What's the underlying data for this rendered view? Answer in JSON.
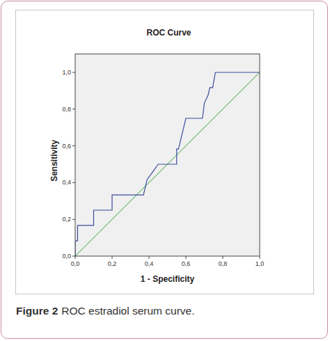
{
  "chart_data": {
    "type": "line",
    "title": "ROC Curve",
    "x_label": "1 - Specificity",
    "y_label": "Sensitivity",
    "caption": {
      "label": "Figure 2",
      "text": "ROC estradiol serum curve."
    },
    "xlim": [
      0,
      1
    ],
    "ylim": [
      0,
      1.1
    ],
    "xticks": [
      {
        "value": 0,
        "label": "0,0"
      },
      {
        "value": 0.2,
        "label": "0,2"
      },
      {
        "value": 0.4,
        "label": "0,4"
      },
      {
        "value": 0.6,
        "label": "0,6"
      },
      {
        "value": 0.8,
        "label": "0,8"
      },
      {
        "value": 1,
        "label": "1,0"
      }
    ],
    "yticks": [
      {
        "value": 0,
        "label": "0,0"
      },
      {
        "value": 0.2,
        "label": "0,2"
      },
      {
        "value": 0.4,
        "label": "0,4"
      },
      {
        "value": 0.6,
        "label": "0,6"
      },
      {
        "value": 0.8,
        "label": "0,8"
      },
      {
        "value": 1,
        "label": "1,0"
      }
    ],
    "grid": false,
    "series": [
      {
        "color": "#3a4a9e",
        "line_style": "solid",
        "x": [
          0,
          0,
          0.013,
          0.013,
          0.1,
          0.1,
          0.2,
          0.2,
          0.37,
          0.39,
          0.42,
          0.45,
          0.55,
          0.55,
          0.56,
          0.58,
          0.6,
          0.69,
          0.7,
          0.72,
          0.73,
          0.745,
          0.76,
          1
        ],
        "values": [
          0,
          0.083,
          0.083,
          0.167,
          0.167,
          0.25,
          0.25,
          0.333,
          0.333,
          0.417,
          0.458,
          0.5,
          0.5,
          0.583,
          0.583,
          0.667,
          0.75,
          0.75,
          0.833,
          0.875,
          0.917,
          0.917,
          1,
          1
        ]
      },
      {
        "color": "#72c07a",
        "line_style": "solid",
        "x": [
          0,
          1
        ],
        "values": [
          0,
          1
        ]
      }
    ]
  }
}
